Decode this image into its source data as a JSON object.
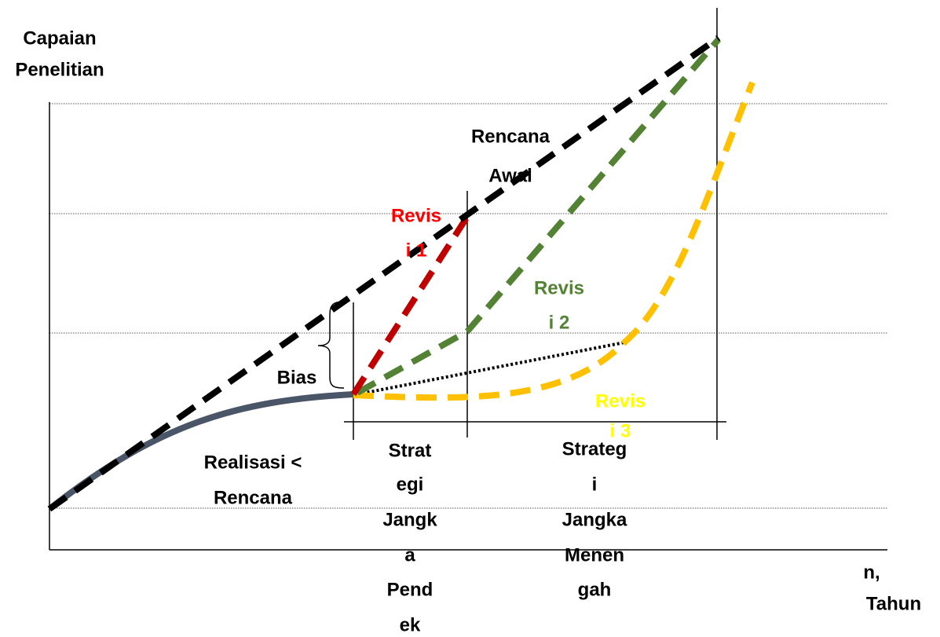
{
  "labels": {
    "y_axis": [
      "Capaian",
      "Penelitian"
    ],
    "x_axis": [
      "n,",
      "Tahun"
    ],
    "plan": [
      "Rencana",
      "Awal"
    ],
    "revision_1": [
      "Revis",
      "i 1"
    ],
    "revision_2": [
      "Revis",
      "i 2"
    ],
    "revision_3": [
      "Revis",
      "i 3"
    ],
    "bias": "Bias",
    "realization": [
      "Realisasi <",
      "Rencana"
    ],
    "short_term": [
      "Strat",
      "egi",
      "Jangk",
      "a",
      "Pend",
      "ek"
    ],
    "medium_term": [
      "Strateg",
      "i",
      "Jangka",
      "Menen",
      "gah"
    ]
  }
}
